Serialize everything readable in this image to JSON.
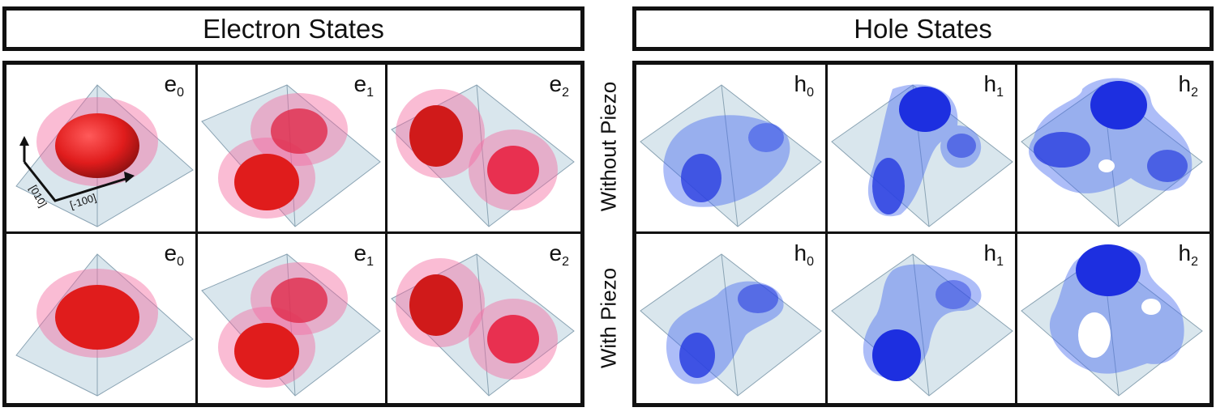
{
  "headers": {
    "electron": "Electron States",
    "hole": "Hole States"
  },
  "row_labels": {
    "without": "Without Piezo",
    "with": "With Piezo"
  },
  "axes": {
    "y_dir": "[010]",
    "x_dir": "[-100]"
  },
  "colors": {
    "electron": "#e0303a",
    "hole": "#2a3fe0",
    "pyramid": "#a9c6d8"
  },
  "rows": {
    "without": {
      "electron": [
        {
          "base": "e",
          "sub": "0"
        },
        {
          "base": "e",
          "sub": "1"
        },
        {
          "base": "e",
          "sub": "2"
        }
      ],
      "hole": [
        {
          "base": "h",
          "sub": "0"
        },
        {
          "base": "h",
          "sub": "1"
        },
        {
          "base": "h",
          "sub": "2"
        }
      ]
    },
    "with": {
      "electron": [
        {
          "base": "e",
          "sub": "0"
        },
        {
          "base": "e",
          "sub": "1"
        },
        {
          "base": "e",
          "sub": "2"
        }
      ],
      "hole": [
        {
          "base": "h",
          "sub": "0"
        },
        {
          "base": "h",
          "sub": "1"
        },
        {
          "base": "h",
          "sub": "2"
        }
      ]
    }
  }
}
